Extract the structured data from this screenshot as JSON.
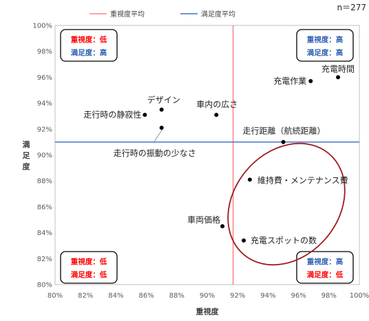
{
  "chart_data": {
    "type": "scatter",
    "sample_size": "n＝277",
    "xlabel": "重視度",
    "ylabel": "満足度",
    "xlim": [
      0.8,
      1.0
    ],
    "ylim": [
      0.8,
      1.0
    ],
    "x_ticks": [
      "80%",
      "82%",
      "84%",
      "86%",
      "88%",
      "90%",
      "92%",
      "94%",
      "96%",
      "98%",
      "100%"
    ],
    "y_ticks": [
      "80%",
      "82%",
      "84%",
      "86%",
      "88%",
      "90%",
      "92%",
      "94%",
      "96%",
      "98%",
      "100%"
    ],
    "grid": false,
    "legend_position": "top",
    "reference_lines": [
      {
        "name": "重視度平均",
        "axis": "x",
        "value": 0.917,
        "color": "#ff8080"
      },
      {
        "name": "満足度平均",
        "axis": "y",
        "value": 0.91,
        "color": "#4472c4"
      }
    ],
    "points": [
      {
        "label": "充電時間",
        "x": 0.986,
        "y": 0.96
      },
      {
        "label": "充電作業",
        "x": 0.968,
        "y": 0.957
      },
      {
        "label": "デザイン",
        "x": 0.87,
        "y": 0.935
      },
      {
        "label": "車内の広さ",
        "x": 0.906,
        "y": 0.931
      },
      {
        "label": "走行時の静寂性",
        "x": 0.859,
        "y": 0.931
      },
      {
        "label": "走行時の振動の少なさ",
        "x": 0.87,
        "y": 0.921
      },
      {
        "label": "走行距離（航続距離）",
        "x": 0.95,
        "y": 0.91
      },
      {
        "label": "維持費・メンテナンス費",
        "x": 0.928,
        "y": 0.881
      },
      {
        "label": "車両価格",
        "x": 0.91,
        "y": 0.845
      },
      {
        "label": "充電スポットの数",
        "x": 0.924,
        "y": 0.834
      }
    ],
    "quadrant_boxes": [
      {
        "position": "top-left",
        "line1": "重視度：低",
        "line2": "満足度：高",
        "color1": "#ff0000",
        "color2": "#2e5fb3"
      },
      {
        "position": "top-right",
        "line1": "重視度：高",
        "line2": "満足度：高",
        "color1": "#2e5fb3",
        "color2": "#2e5fb3"
      },
      {
        "position": "bottom-left",
        "line1": "重視度：低",
        "line2": "満足度：低",
        "color1": "#ff0000",
        "color2": "#ff0000"
      },
      {
        "position": "bottom-right",
        "line1": "重視度：高",
        "line2": "満足度：低",
        "color1": "#2e5fb3",
        "color2": "#ff0000"
      }
    ],
    "highlight_ellipse_color": "#9b1c1c"
  }
}
